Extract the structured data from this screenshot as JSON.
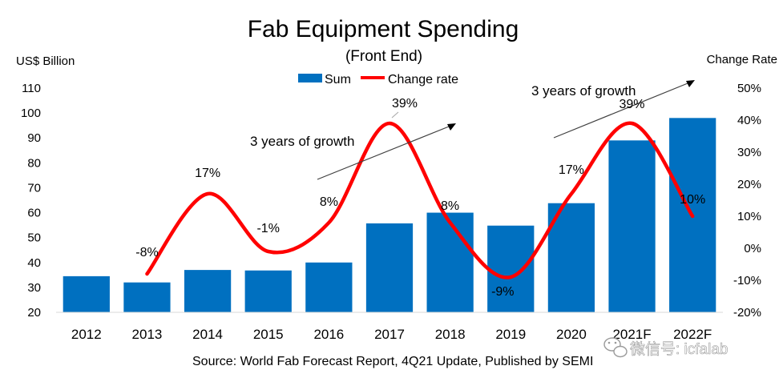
{
  "watermark": {
    "text": "微信号: icfalab",
    "icon": "wechat-logo-icon"
  },
  "chart_data": {
    "type": "bar",
    "title": "Fab Equipment Spending",
    "subtitle": "(Front End)",
    "ylabel": "US$ Billion",
    "y2label": "Change Rate",
    "categories": [
      "2012",
      "2013",
      "2014",
      "2015",
      "2016",
      "2017",
      "2018",
      "2019",
      "2020",
      "2021F",
      "2022F"
    ],
    "series": [
      {
        "name": "Sum",
        "kind": "bar",
        "axis": "left",
        "color": "#0070C0",
        "values": [
          34.5,
          32,
          37,
          36.8,
          40,
          55.7,
          60,
          54.8,
          63.8,
          89,
          98
        ]
      },
      {
        "name": "Change rate",
        "kind": "line",
        "smooth": true,
        "axis": "right",
        "color": "#FF0000",
        "values": [
          -8,
          17,
          -1,
          8,
          39,
          8,
          -9,
          17,
          39,
          10
        ],
        "x": [
          "2013",
          "2014",
          "2015",
          "2016",
          "2017",
          "2018",
          "2019",
          "2020",
          "2021F",
          "2022F"
        ],
        "labels": [
          "-8%",
          "17%",
          "-1%",
          "8%",
          "39%",
          "8%",
          "-9%",
          "17%",
          "39%",
          "10%"
        ]
      }
    ],
    "ylim": [
      20,
      110
    ],
    "yticks": [
      "20",
      "30",
      "40",
      "50",
      "60",
      "70",
      "80",
      "90",
      "100",
      "110"
    ],
    "y2lim": [
      -20,
      50
    ],
    "y2ticks": [
      "-20%",
      "-10%",
      "0%",
      "10%",
      "20%",
      "30%",
      "40%",
      "50%"
    ],
    "grid": false,
    "legend": {
      "position": "top-center",
      "items": [
        "Sum",
        "Change rate"
      ]
    },
    "annotations": [
      {
        "text": "3 years of growth",
        "span": [
          "2016",
          "2018"
        ]
      },
      {
        "text": "3 years of growth",
        "span": [
          "2020",
          "2022F"
        ]
      }
    ],
    "source": "Source: World Fab Forecast Report, 4Q21 Update, Published by SEMI"
  }
}
